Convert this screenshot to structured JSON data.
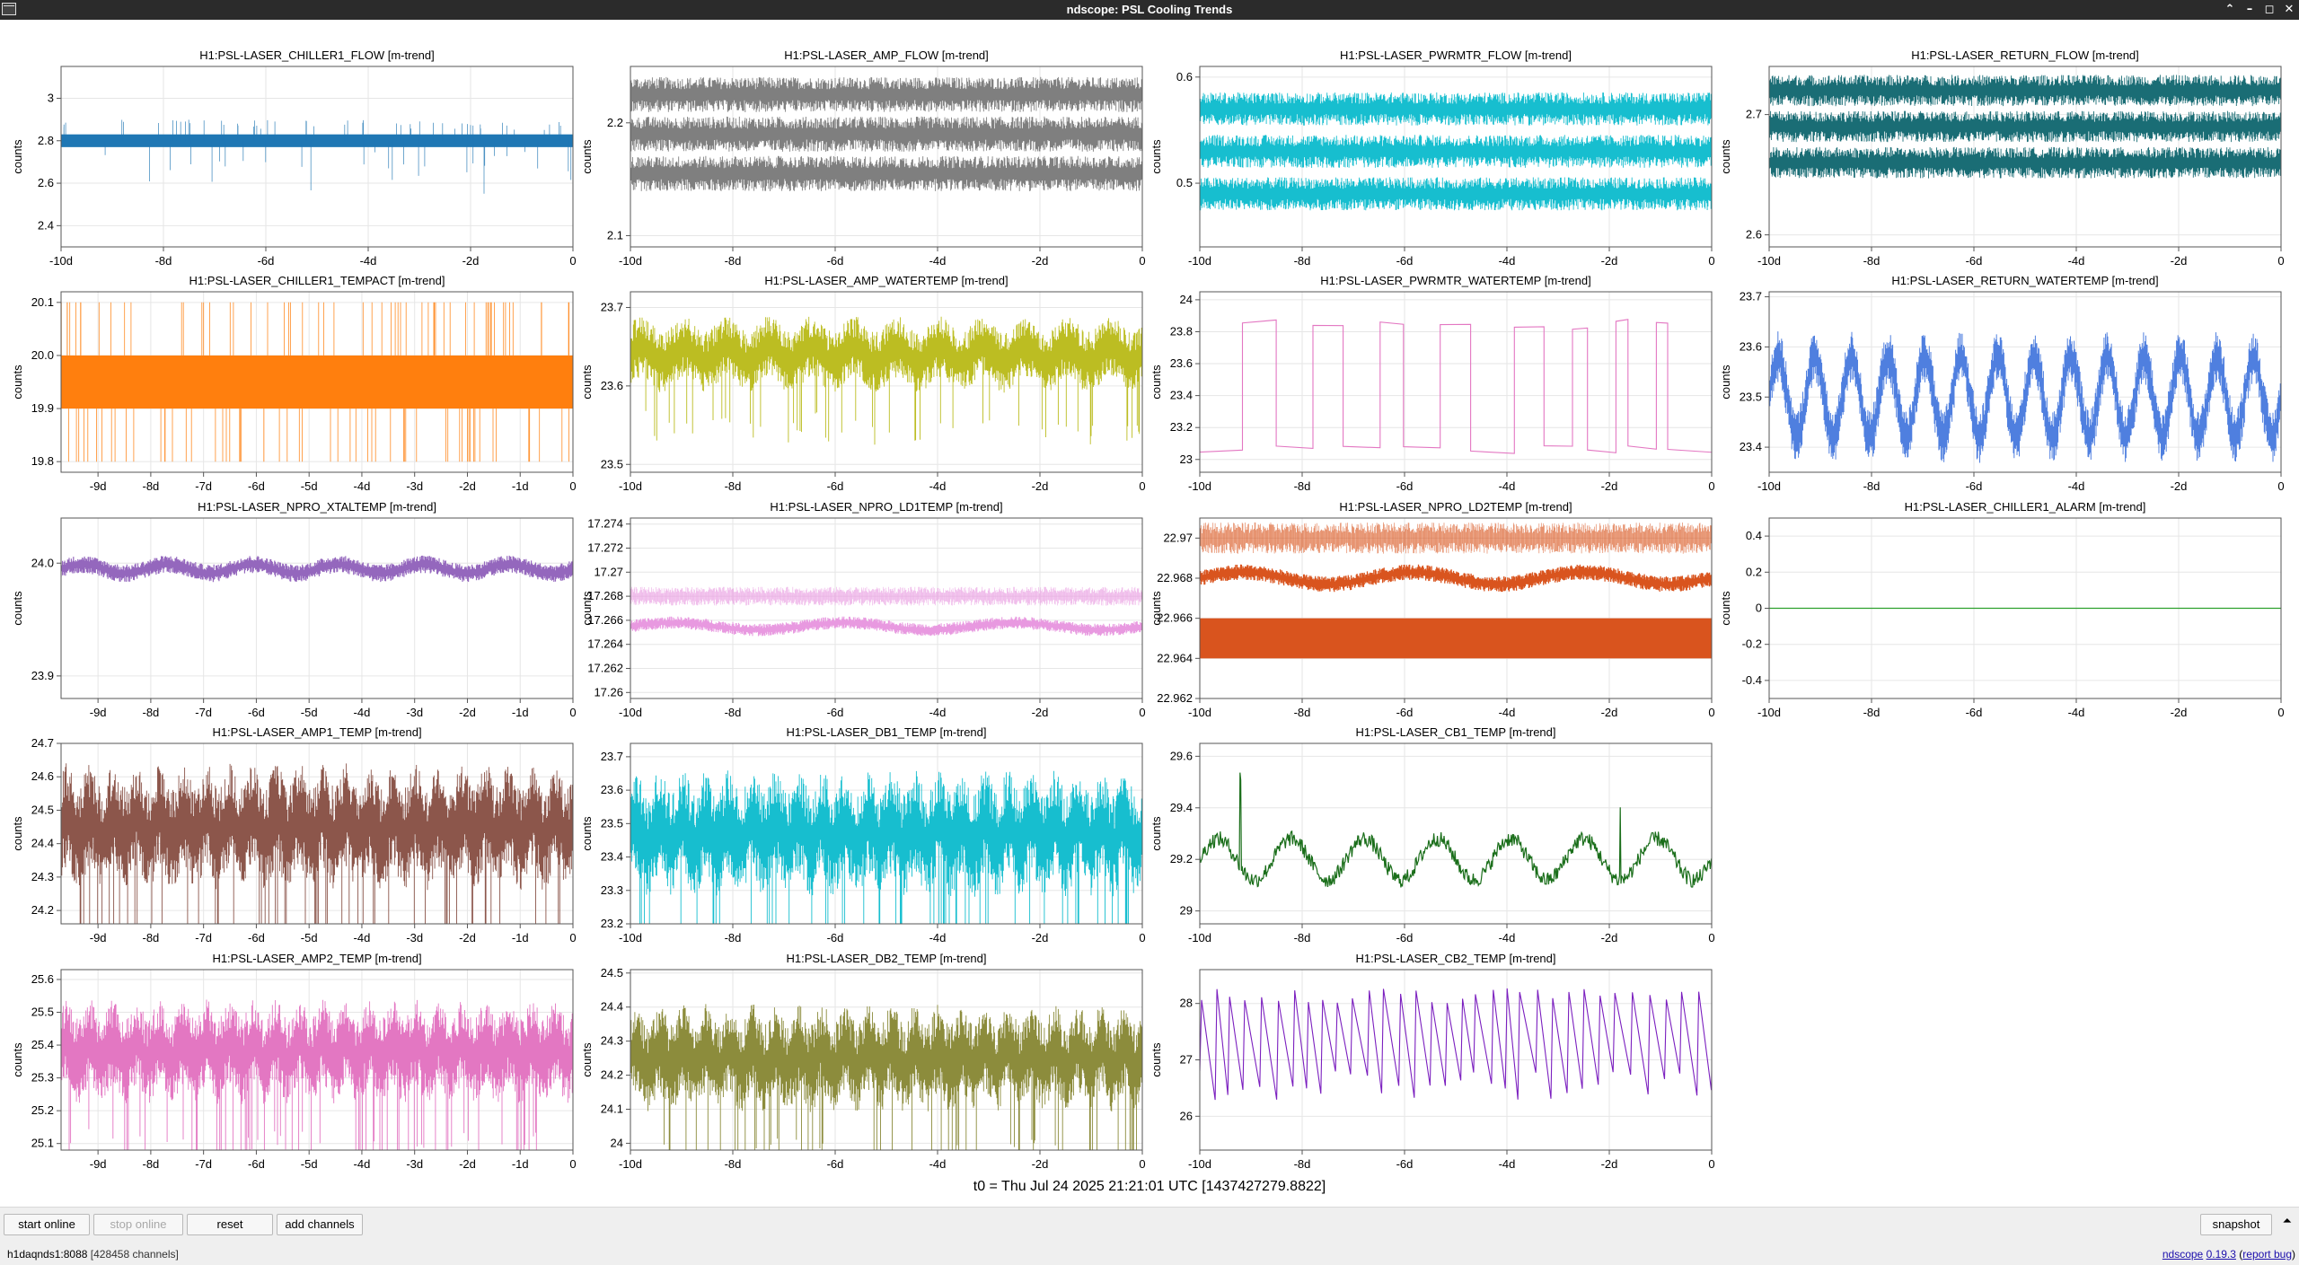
{
  "window": {
    "title": "ndscope: PSL Cooling Trends"
  },
  "t0_label": "t0 = Thu Jul 24 2025 21:21:01 UTC [1437427279.8822]",
  "toolbar": {
    "start_online": "start online",
    "stop_online": "stop online",
    "reset": "reset",
    "add_channels": "add channels",
    "snapshot": "snapshot"
  },
  "status": {
    "server": "h1daqnds1:8088",
    "channels": "[428458 channels]"
  },
  "version": {
    "app": "ndscope",
    "number": "0.19.3",
    "report": "report bug",
    "open_paren": " (",
    "close_paren": ")"
  },
  "chart_data": [
    {
      "title": "H1:PSL-LASER_CHILLER1_FLOW [m-trend]",
      "ylabel": "counts",
      "color": "#1f77b4",
      "style": "bandspike",
      "ylim": [
        2.3,
        3.15
      ],
      "yticks": [
        "2.4",
        "2.6",
        "2.8",
        "3"
      ],
      "yticks_v": [
        2.4,
        2.6,
        2.8,
        3.0
      ],
      "xticks": [
        "-10d",
        "-8d",
        "-6d",
        "-4d",
        "-2d",
        "0"
      ],
      "xticks_v": [
        -10,
        -8,
        -6,
        -4,
        -2,
        0
      ],
      "xlim": [
        -10,
        0
      ],
      "series": [
        {
          "center": 2.8,
          "spread": 0.05
        }
      ]
    },
    {
      "title": "H1:PSL-LASER_AMP_FLOW [m-trend]",
      "ylabel": "counts",
      "color": "#7f7f7f",
      "style": "bands",
      "ylim": [
        2.09,
        2.25
      ],
      "yticks": [
        "2.1",
        "2.2"
      ],
      "yticks_v": [
        2.1,
        2.2
      ],
      "xticks": [
        "-10d",
        "-8d",
        "-6d",
        "-4d",
        "-2d",
        "0"
      ],
      "xticks_v": [
        -10,
        -8,
        -6,
        -4,
        -2,
        0
      ],
      "xlim": [
        -10,
        0
      ],
      "series": [
        {
          "center": 2.225,
          "spread": 0.012
        },
        {
          "center": 2.19,
          "spread": 0.012
        },
        {
          "center": 2.155,
          "spread": 0.012
        }
      ]
    },
    {
      "title": "H1:PSL-LASER_PWRMTR_FLOW [m-trend]",
      "ylabel": "counts",
      "color": "#17becf",
      "style": "bands",
      "ylim": [
        0.44,
        0.61
      ],
      "yticks": [
        "0.5",
        "0.6"
      ],
      "yticks_v": [
        0.5,
        0.6
      ],
      "xticks": [
        "-10d",
        "-8d",
        "-6d",
        "-4d",
        "-2d",
        "0"
      ],
      "xticks_v": [
        -10,
        -8,
        -6,
        -4,
        -2,
        0
      ],
      "xlim": [
        -10,
        0
      ],
      "series": [
        {
          "center": 0.57,
          "spread": 0.012
        },
        {
          "center": 0.53,
          "spread": 0.012
        },
        {
          "center": 0.49,
          "spread": 0.012
        }
      ]
    },
    {
      "title": "H1:PSL-LASER_RETURN_FLOW [m-trend]",
      "ylabel": "counts",
      "color": "#1a6d75",
      "style": "bands",
      "ylim": [
        2.59,
        2.74
      ],
      "yticks": [
        "2.6",
        "2.7"
      ],
      "yticks_v": [
        2.6,
        2.7
      ],
      "xticks": [
        "-10d",
        "-8d",
        "-6d",
        "-4d",
        "-2d",
        "0"
      ],
      "xticks_v": [
        -10,
        -8,
        -6,
        -4,
        -2,
        0
      ],
      "xlim": [
        -10,
        0
      ],
      "series": [
        {
          "center": 2.72,
          "spread": 0.01
        },
        {
          "center": 2.69,
          "spread": 0.01
        },
        {
          "center": 2.66,
          "spread": 0.01
        }
      ]
    },
    {
      "title": "H1:PSL-LASER_CHILLER1_TEMPACT [m-trend]",
      "ylabel": "counts",
      "color": "#ff7f0e",
      "style": "block",
      "ylim": [
        19.78,
        20.12
      ],
      "yticks": [
        "19.8",
        "19.9",
        "20.0",
        "20.1"
      ],
      "yticks_v": [
        19.8,
        19.9,
        20.0,
        20.1
      ],
      "xticks": [
        "-9d",
        "-8d",
        "-7d",
        "-6d",
        "-5d",
        "-4d",
        "-3d",
        "-2d",
        "-1d",
        "0"
      ],
      "xticks_v": [
        -9,
        -8,
        -7,
        -6,
        -5,
        -4,
        -3,
        -2,
        -1,
        0
      ],
      "xlim": [
        -9.7,
        0
      ],
      "series": [
        {
          "lo": 19.9,
          "hi": 20.0
        }
      ]
    },
    {
      "title": "H1:PSL-LASER_AMP_WATERTEMP [m-trend]",
      "ylabel": "counts",
      "color": "#bcbd22",
      "style": "spikydown",
      "ylim": [
        23.49,
        23.72
      ],
      "yticks": [
        "23.5",
        "23.6",
        "23.7"
      ],
      "yticks_v": [
        23.5,
        23.6,
        23.7
      ],
      "xticks": [
        "-10d",
        "-8d",
        "-6d",
        "-4d",
        "-2d",
        "0"
      ],
      "xticks_v": [
        -10,
        -8,
        -6,
        -4,
        -2,
        0
      ],
      "xlim": [
        -10,
        0
      ],
      "series": [
        {
          "center": 23.64,
          "spread": 0.03
        }
      ]
    },
    {
      "title": "H1:PSL-LASER_PWRMTR_WATERTEMP [m-trend]",
      "ylabel": "counts",
      "color": "#e377c2",
      "style": "square",
      "ylim": [
        22.92,
        24.05
      ],
      "yticks": [
        "23",
        "23.2",
        "23.4",
        "23.6",
        "23.8",
        "24"
      ],
      "yticks_v": [
        23.0,
        23.2,
        23.4,
        23.6,
        23.8,
        24.0
      ],
      "xticks": [
        "-10d",
        "-8d",
        "-6d",
        "-4d",
        "-2d",
        "0"
      ],
      "xticks_v": [
        -10,
        -8,
        -6,
        -4,
        -2,
        0
      ],
      "xlim": [
        -10,
        0
      ],
      "series": [
        {
          "lo": 23.07,
          "hi": 23.85
        }
      ]
    },
    {
      "title": "H1:PSL-LASER_RETURN_WATERTEMP [m-trend]",
      "ylabel": "counts",
      "color": "#4f7fdf",
      "style": "oscill",
      "ylim": [
        23.35,
        23.71
      ],
      "yticks": [
        "23.4",
        "23.5",
        "23.6",
        "23.7"
      ],
      "yticks_v": [
        23.4,
        23.5,
        23.6,
        23.7
      ],
      "xticks": [
        "-10d",
        "-8d",
        "-6d",
        "-4d",
        "-2d",
        "0"
      ],
      "xticks_v": [
        -10,
        -8,
        -6,
        -4,
        -2,
        0
      ],
      "xlim": [
        -10,
        0
      ],
      "series": [
        {
          "center": 23.5,
          "spread": 0.08
        }
      ]
    },
    {
      "title": "H1:PSL-LASER_NPRO_XTALTEMP [m-trend]",
      "ylabel": "counts",
      "color": "#9467bd",
      "style": "thinline",
      "ylim": [
        23.88,
        24.04
      ],
      "yticks": [
        "23.9",
        "24.0"
      ],
      "yticks_v": [
        23.9,
        24.0
      ],
      "xticks": [
        "-9d",
        "-8d",
        "-7d",
        "-6d",
        "-5d",
        "-4d",
        "-3d",
        "-2d",
        "-1d",
        "0"
      ],
      "xticks_v": [
        -9,
        -8,
        -7,
        -6,
        -5,
        -4,
        -3,
        -2,
        -1,
        0
      ],
      "xlim": [
        -9.7,
        0
      ],
      "series": [
        {
          "center": 23.995,
          "spread": 0.006
        }
      ]
    },
    {
      "title": "H1:PSL-LASER_NPRO_LD1TEMP [m-trend]",
      "ylabel": "counts",
      "color": "#e899e0",
      "style": "dotted",
      "ylim": [
        17.2595,
        17.2745
      ],
      "yticks": [
        "17.26",
        "17.262",
        "17.264",
        "17.266",
        "17.268",
        "17.27",
        "17.272",
        "17.274"
      ],
      "yticks_v": [
        17.26,
        17.262,
        17.264,
        17.266,
        17.268,
        17.27,
        17.272,
        17.274
      ],
      "xticks": [
        "-10d",
        "-8d",
        "-6d",
        "-4d",
        "-2d",
        "0"
      ],
      "xticks_v": [
        -10,
        -8,
        -6,
        -4,
        -2,
        0
      ],
      "xlim": [
        -10,
        0
      ],
      "series": [
        {
          "center": 17.268,
          "spread": 0.0006
        },
        {
          "center": 17.2655,
          "spread": 0.0004
        }
      ]
    },
    {
      "title": "H1:PSL-LASER_NPRO_LD2TEMP [m-trend]",
      "ylabel": "counts",
      "color": "#d9541e",
      "style": "ld2",
      "ylim": [
        22.962,
        22.971
      ],
      "yticks": [
        "22.962",
        "22.964",
        "22.966",
        "22.968",
        "22.97"
      ],
      "yticks_v": [
        22.962,
        22.964,
        22.966,
        22.968,
        22.97
      ],
      "xticks": [
        "-10d",
        "-8d",
        "-6d",
        "-4d",
        "-2d",
        "0"
      ],
      "xticks_v": [
        -10,
        -8,
        -6,
        -4,
        -2,
        0
      ],
      "xlim": [
        -10,
        0
      ],
      "series": [
        {
          "center": 22.97,
          "spread": 0.0006
        },
        {
          "center": 22.968,
          "spread": 0.0003
        },
        {
          "lo": 22.964,
          "hi": 22.966
        }
      ]
    },
    {
      "title": "H1:PSL-LASER_CHILLER1_ALARM [m-trend]",
      "ylabel": "counts",
      "color": "#2ca02c",
      "style": "flat",
      "ylim": [
        -0.5,
        0.5
      ],
      "yticks": [
        "-0.4",
        "-0.2",
        "0",
        "0.2",
        "0.4"
      ],
      "yticks_v": [
        -0.4,
        -0.2,
        0,
        0.2,
        0.4
      ],
      "xticks": [
        "-10d",
        "-8d",
        "-6d",
        "-4d",
        "-2d",
        "0"
      ],
      "xticks_v": [
        -10,
        -8,
        -6,
        -4,
        -2,
        0
      ],
      "xlim": [
        -10,
        0
      ],
      "series": [
        {
          "center": 0,
          "spread": 0
        }
      ]
    },
    {
      "title": "H1:PSL-LASER_AMP1_TEMP [m-trend]",
      "ylabel": "counts",
      "color": "#8c564b",
      "style": "noisy",
      "ylim": [
        24.16,
        24.7
      ],
      "yticks": [
        "24.2",
        "24.3",
        "24.4",
        "24.5",
        "24.6",
        "24.7"
      ],
      "yticks_v": [
        24.2,
        24.3,
        24.4,
        24.5,
        24.6,
        24.7
      ],
      "xticks": [
        "-9d",
        "-8d",
        "-7d",
        "-6d",
        "-5d",
        "-4d",
        "-3d",
        "-2d",
        "-1d",
        "0"
      ],
      "xticks_v": [
        -9,
        -8,
        -7,
        -6,
        -5,
        -4,
        -3,
        -2,
        -1,
        0
      ],
      "xlim": [
        -9.7,
        0
      ],
      "series": [
        {
          "center": 24.45,
          "spread": 0.12
        }
      ]
    },
    {
      "title": "H1:PSL-LASER_DB1_TEMP [m-trend]",
      "ylabel": "counts",
      "color": "#17becf",
      "style": "noisy",
      "ylim": [
        23.2,
        23.74
      ],
      "yticks": [
        "23.2",
        "23.3",
        "23.4",
        "23.5",
        "23.6",
        "23.7"
      ],
      "yticks_v": [
        23.2,
        23.3,
        23.4,
        23.5,
        23.6,
        23.7
      ],
      "xticks": [
        "-10d",
        "-8d",
        "-6d",
        "-4d",
        "-2d",
        "0"
      ],
      "xticks_v": [
        -10,
        -8,
        -6,
        -4,
        -2,
        0
      ],
      "xlim": [
        -10,
        0
      ],
      "series": [
        {
          "center": 23.47,
          "spread": 0.12
        }
      ]
    },
    {
      "title": "H1:PSL-LASER_CB1_TEMP [m-trend]",
      "ylabel": "counts",
      "color": "#1a6e1a",
      "style": "walk",
      "ylim": [
        28.95,
        29.65
      ],
      "yticks": [
        "29",
        "29.2",
        "29.4",
        "29.6"
      ],
      "yticks_v": [
        29.0,
        29.2,
        29.4,
        29.6
      ],
      "xticks": [
        "-10d",
        "-8d",
        "-6d",
        "-4d",
        "-2d",
        "0"
      ],
      "xticks_v": [
        -10,
        -8,
        -6,
        -4,
        -2,
        0
      ],
      "xlim": [
        -10,
        0
      ],
      "series": [
        {
          "center": 29.2,
          "spread": 0.08
        }
      ]
    },
    {
      "title": "",
      "empty": true
    },
    {
      "title": "H1:PSL-LASER_AMP2_TEMP [m-trend]",
      "ylabel": "counts",
      "color": "#e377c2",
      "style": "noisy",
      "ylim": [
        25.08,
        25.63
      ],
      "yticks": [
        "25.1",
        "25.2",
        "25.3",
        "25.4",
        "25.5",
        "25.6"
      ],
      "yticks_v": [
        25.1,
        25.2,
        25.3,
        25.4,
        25.5,
        25.6
      ],
      "xticks": [
        "-9d",
        "-8d",
        "-7d",
        "-6d",
        "-5d",
        "-4d",
        "-3d",
        "-2d",
        "-1d",
        "0"
      ],
      "xticks_v": [
        -9,
        -8,
        -7,
        -6,
        -5,
        -4,
        -3,
        -2,
        -1,
        0
      ],
      "xlim": [
        -9.7,
        0
      ],
      "series": [
        {
          "center": 25.38,
          "spread": 0.1
        }
      ]
    },
    {
      "title": "H1:PSL-LASER_DB2_TEMP [m-trend]",
      "ylabel": "counts",
      "color": "#8c8c3c",
      "style": "noisy",
      "ylim": [
        23.98,
        24.51
      ],
      "yticks": [
        "24",
        "24.1",
        "24.2",
        "24.3",
        "24.4",
        "24.5"
      ],
      "yticks_v": [
        24.0,
        24.1,
        24.2,
        24.3,
        24.4,
        24.5
      ],
      "xticks": [
        "-10d",
        "-8d",
        "-6d",
        "-4d",
        "-2d",
        "0"
      ],
      "xticks_v": [
        -10,
        -8,
        -6,
        -4,
        -2,
        0
      ],
      "xlim": [
        -10,
        0
      ],
      "series": [
        {
          "center": 24.25,
          "spread": 0.1
        }
      ]
    },
    {
      "title": "H1:PSL-LASER_CB2_TEMP [m-trend]",
      "ylabel": "counts",
      "color": "#7b1fbf",
      "style": "sawtooth",
      "ylim": [
        25.4,
        28.6
      ],
      "yticks": [
        "26",
        "27",
        "28"
      ],
      "yticks_v": [
        26,
        27,
        28
      ],
      "xticks": [
        "-10d",
        "-8d",
        "-6d",
        "-4d",
        "-2d",
        "0"
      ],
      "xticks_v": [
        -10,
        -8,
        -6,
        -4,
        -2,
        0
      ],
      "xlim": [
        -10,
        0
      ],
      "series": [
        {
          "lo": 26.2,
          "hi": 28.3
        }
      ]
    },
    {
      "title": "",
      "empty": true
    }
  ]
}
